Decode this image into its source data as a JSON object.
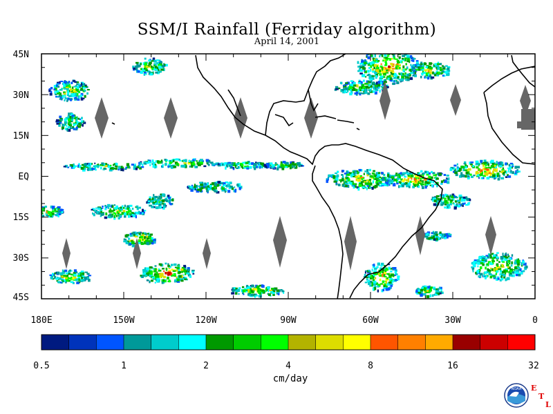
{
  "title": "SSM/I Rainfall (Ferriday algorithm)",
  "date": "April 14, 2001",
  "lat_labels": [
    "45N",
    "30N",
    "15N",
    "EQ",
    "15S",
    "30S",
    "45S"
  ],
  "lon_labels": [
    "180E",
    "150W",
    "120W",
    "90W",
    "60W",
    "30W",
    "0"
  ],
  "colorbar": {
    "unit": "cm/day",
    "ticks": [
      "0.5",
      "1",
      "2",
      "4",
      "8",
      "16",
      "32"
    ],
    "colors": [
      "#001a80",
      "#0033bb",
      "#0055ff",
      "#009999",
      "#00cccc",
      "#00ffff",
      "#009900",
      "#00cc00",
      "#00ff00",
      "#b3b300",
      "#dddd00",
      "#ffff00",
      "#ff5500",
      "#ff8000",
      "#ffaa00",
      "#990000",
      "#cc0000",
      "#ff0000"
    ]
  },
  "logo": {
    "text": "NOAA",
    "letters": [
      "E",
      "T",
      "L"
    ]
  }
}
